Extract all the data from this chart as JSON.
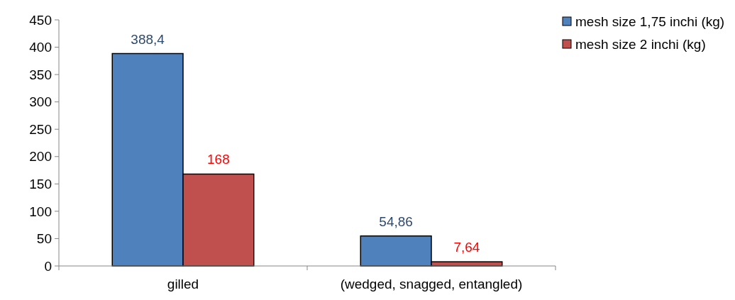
{
  "chart_data": {
    "type": "bar",
    "categories": [
      "gilled",
      "(wedged, snagged, entangled)"
    ],
    "series": [
      {
        "name": "mesh size 1,75 inchi (kg)",
        "color": "#4f81bd",
        "values": [
          388.4,
          54.86
        ],
        "value_labels": [
          "388,4",
          "54,86"
        ]
      },
      {
        "name": "mesh size 2 inchi (kg)",
        "color": "#c0504d",
        "values": [
          168,
          7.64
        ],
        "value_labels": [
          "168",
          "7,64"
        ]
      }
    ],
    "ylim": [
      0,
      450
    ],
    "yticks": [
      0,
      50,
      100,
      150,
      200,
      250,
      300,
      350,
      400,
      450
    ],
    "grid": false,
    "legend": "top right"
  }
}
